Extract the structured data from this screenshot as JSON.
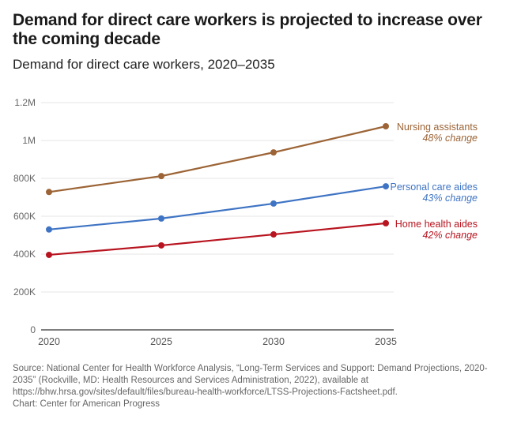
{
  "chart_data": {
    "type": "line",
    "title": "Demand for direct care workers is projected to increase over the coming decade",
    "subtitle": "Demand for direct care workers, 2020–2035",
    "xlabel": "",
    "ylabel": "",
    "x": [
      2020,
      2025,
      2030,
      2035
    ],
    "x_tick_labels": [
      "2020",
      "2025",
      "2030",
      "2035"
    ],
    "ylim": [
      0,
      1200000
    ],
    "y_ticks": [
      0,
      200000,
      400000,
      600000,
      800000,
      1000000,
      1200000
    ],
    "y_tick_labels": [
      "0",
      "200K",
      "400K",
      "600K",
      "800K",
      "1M",
      "1.2M"
    ],
    "grid": true,
    "legend": "inline-right",
    "series": [
      {
        "name": "Nursing assistants",
        "annotation": "48% change",
        "color": "#9c6436",
        "values": [
          728000,
          812000,
          937000,
          1075000
        ]
      },
      {
        "name": "Personal care aides",
        "annotation": "43% change",
        "color": "#3f74c4",
        "values": [
          530000,
          588000,
          667000,
          758000
        ]
      },
      {
        "name": "Home health aides",
        "annotation": "42% change",
        "color": "#b8141f",
        "values": [
          396000,
          446000,
          504000,
          563000
        ]
      }
    ]
  },
  "footer": {
    "source": "Source: National Center for Health Workforce Analysis, “Long-Term Services and Support: Demand Projections, 2020-2035” (Rockville, MD: Health Resources and Services Administration, 2022), available at https://bhw.hrsa.gov/sites/default/files/bureau-health-workforce/LTSS-Projections-Factsheet.pdf.",
    "credit": "Chart: Center for American Progress"
  }
}
